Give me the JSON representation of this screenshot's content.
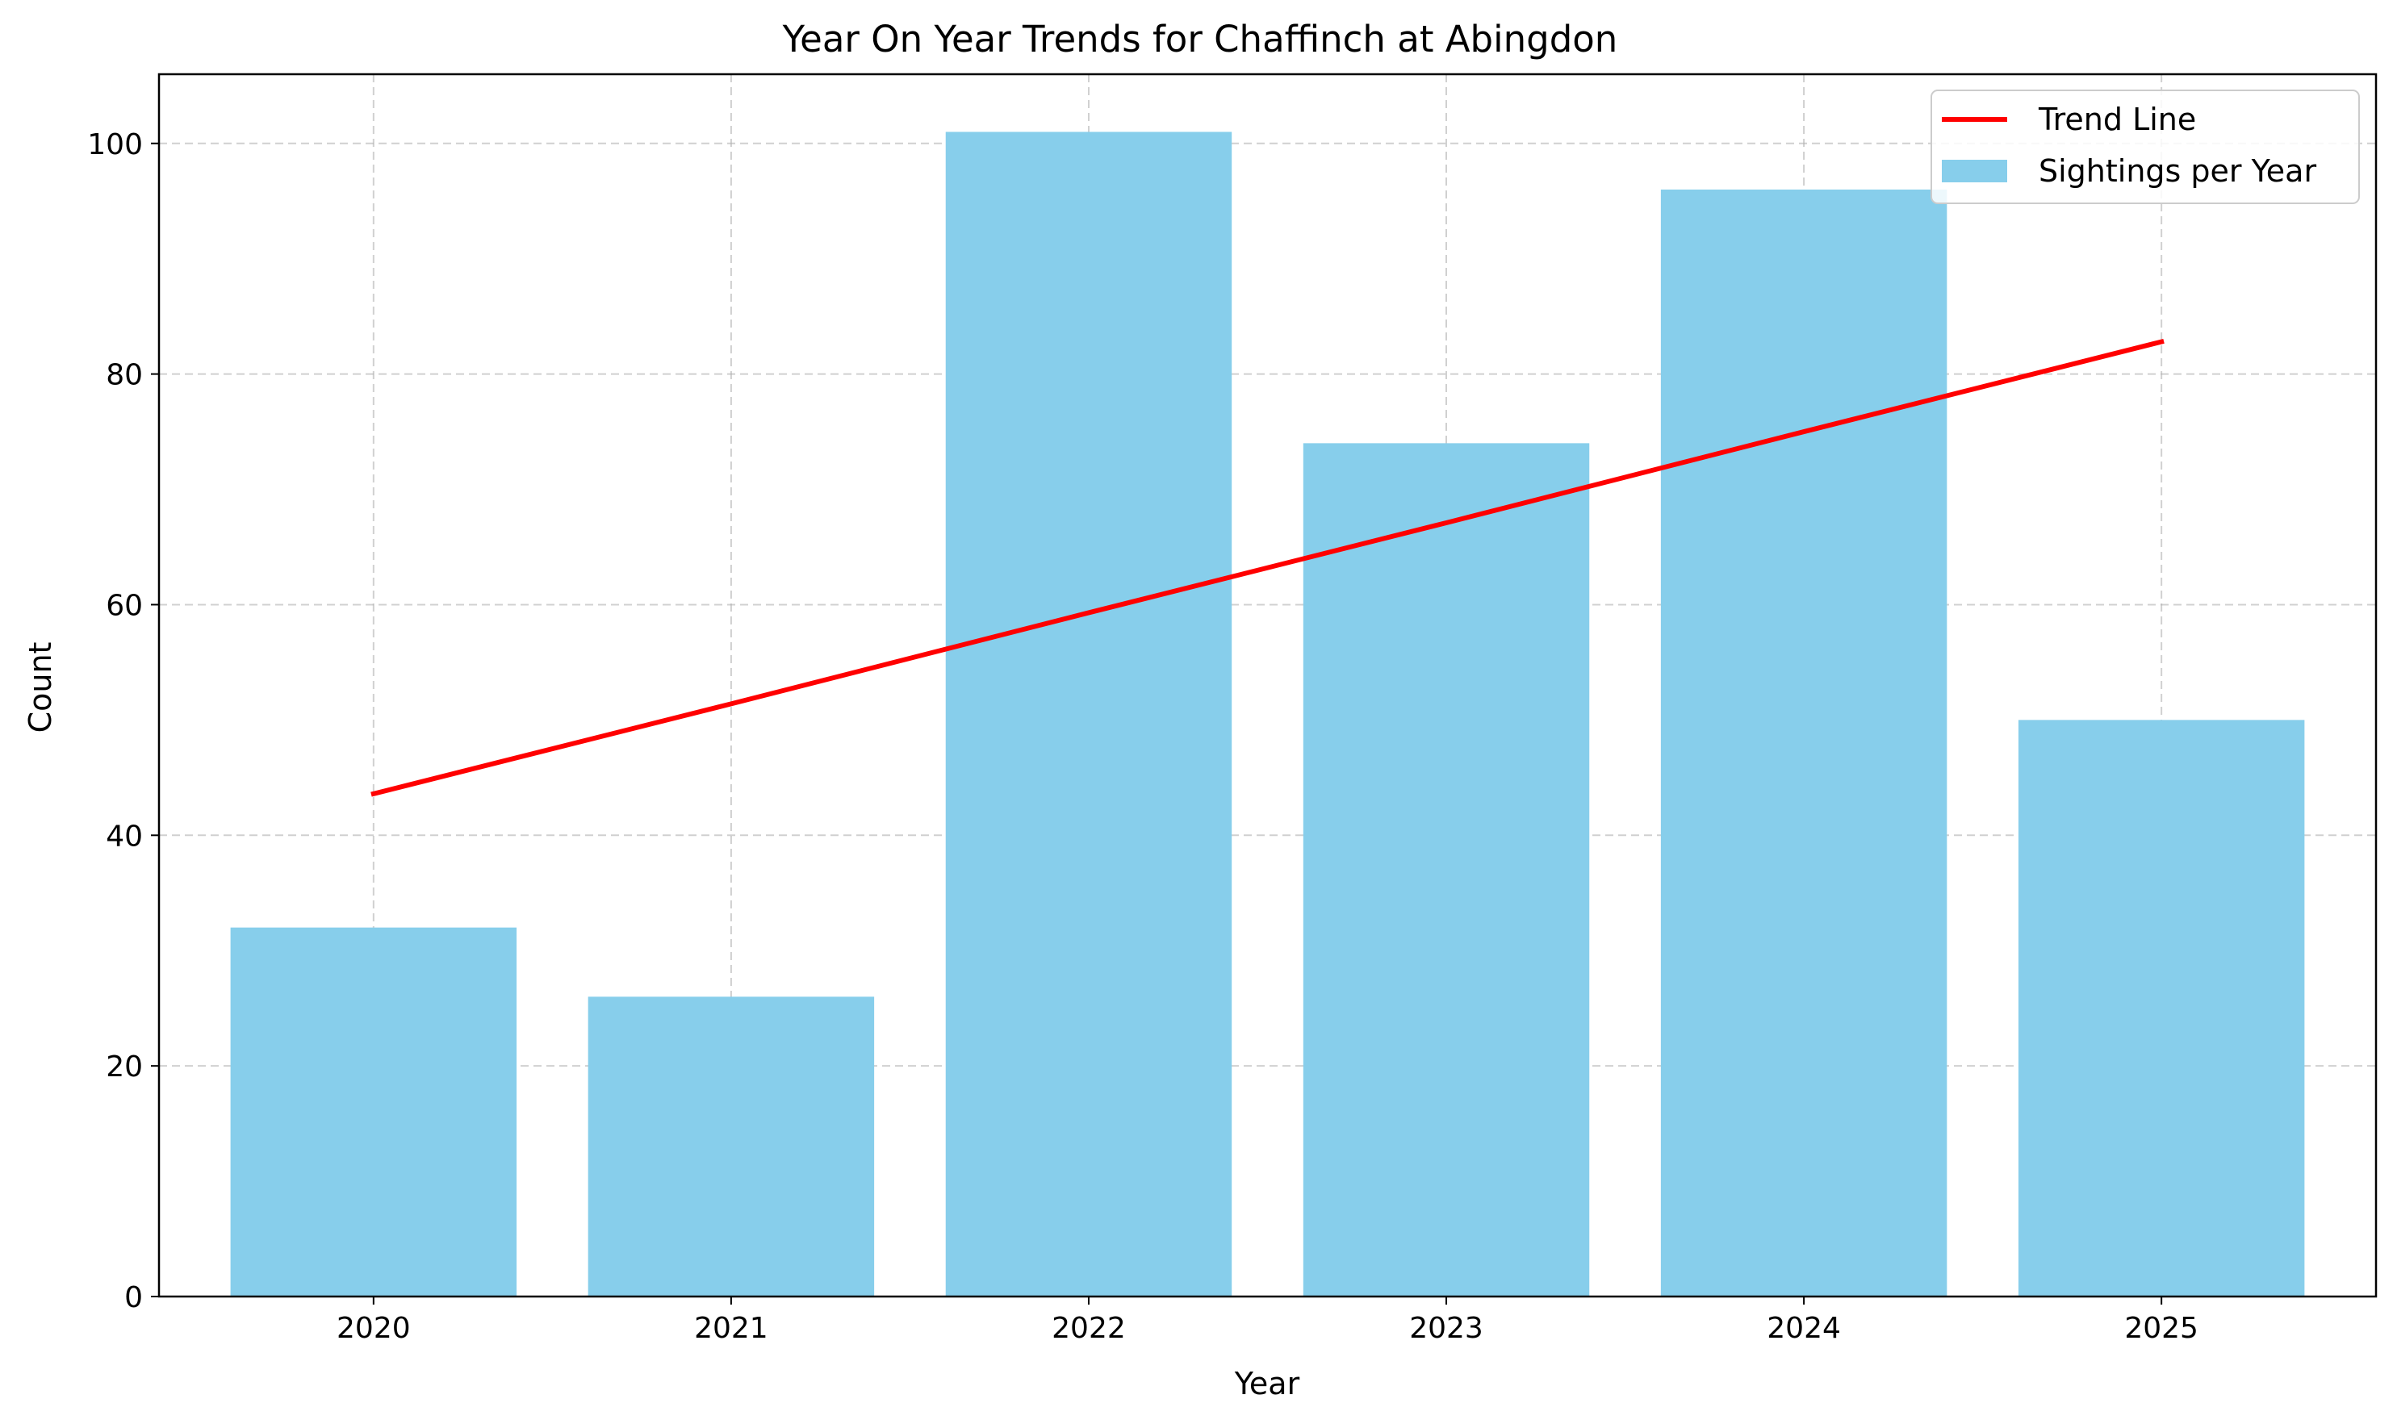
{
  "chart_data": {
    "type": "bar",
    "title": "Year On Year Trends for Chaffinch at Abingdon",
    "xlabel": "Year",
    "ylabel": "Count",
    "categories": [
      "2020",
      "2021",
      "2022",
      "2023",
      "2024",
      "2025"
    ],
    "series": [
      {
        "name": "Sightings per Year",
        "type": "bar",
        "values": [
          32,
          26,
          101,
          74,
          96,
          50
        ],
        "color": "#87ceeb"
      },
      {
        "name": "Trend Line",
        "type": "line",
        "values": [
          43.6,
          51.4,
          59.3,
          67.1,
          75.0,
          82.8
        ],
        "color": "#ff0000"
      }
    ],
    "ylim": [
      0,
      106
    ],
    "yticks": [
      0,
      20,
      40,
      60,
      80,
      100
    ],
    "grid": true,
    "grid_style": "dashed",
    "legend_position": "top-right"
  }
}
